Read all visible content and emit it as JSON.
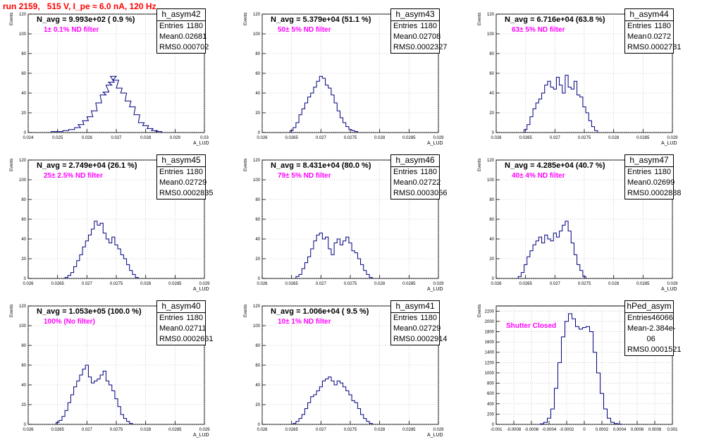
{
  "run_title": "run 2159,   515 V, I_pe ≈ 6.0 nA, 120 Hz",
  "colors": {
    "title": "#ff0000",
    "filter_text": "#ff00ff",
    "hist_line": "#000080",
    "grid": "#aaaaaa"
  },
  "chart_data": [
    {
      "type": "bar",
      "name": "h_asym42",
      "navg": "N_avg = 9.993e+02 ( 0.9 %)",
      "filter": "1± 0.1% ND filter",
      "ylabel": "Events",
      "xlabel": "A_LUD",
      "stats": {
        "entries": "1180",
        "mean": "0.02681",
        "rms": "0.000702"
      },
      "xlim": [
        0.024,
        0.03
      ],
      "ylim": [
        0,
        120
      ],
      "xticks": [
        "0.024",
        "0.025",
        "0.026",
        "0.027",
        "0.028",
        "0.029",
        "0.03"
      ],
      "yticks": [
        "0",
        "20",
        "40",
        "60",
        "80",
        "100",
        "120"
      ],
      "x": [
        0.02488,
        0.02508,
        0.02528,
        0.02548,
        0.02568,
        0.0258,
        0.02595,
        0.0261,
        0.02625,
        0.0264,
        0.02655,
        0.02665,
        0.02675,
        0.02683,
        0.0269,
        0.02698,
        0.0271,
        0.02725,
        0.0274,
        0.02755,
        0.0277,
        0.02785,
        0.028,
        0.02815,
        0.0283,
        0.02845
      ],
      "values": [
        1,
        1,
        2,
        3,
        5,
        8,
        12,
        16,
        22,
        30,
        38,
        41,
        48,
        51,
        57,
        53,
        45,
        40,
        32,
        26,
        18,
        10,
        7,
        4,
        2,
        1
      ]
    },
    {
      "type": "bar",
      "name": "h_asym43",
      "navg": "N_avg = 5.379e+04 (51.1 %)",
      "filter": "50± 5% ND filter",
      "ylabel": "Events",
      "xlabel": "A_LUD",
      "stats": {
        "entries": "1180",
        "mean": "0.02708",
        "rms": "0.0002327"
      },
      "xlim": [
        0.026,
        0.029
      ],
      "ylim": [
        0,
        120
      ],
      "xticks": [
        "0.026",
        "0.0265",
        "0.027",
        "0.0275",
        "0.028",
        "0.0285",
        "0.029"
      ],
      "yticks": [
        "0",
        "20",
        "40",
        "60",
        "80",
        "100",
        "120"
      ],
      "x": [
        0.0265,
        0.02655,
        0.0266,
        0.02665,
        0.0267,
        0.02675,
        0.0268,
        0.02685,
        0.0269,
        0.02695,
        0.027,
        0.02705,
        0.0271,
        0.02715,
        0.0272,
        0.02725,
        0.0273,
        0.02735,
        0.0274,
        0.02745,
        0.0275,
        0.02755,
        0.0276
      ],
      "values": [
        2,
        5,
        10,
        18,
        24,
        30,
        36,
        40,
        46,
        52,
        57,
        55,
        48,
        45,
        38,
        30,
        22,
        15,
        10,
        6,
        3,
        2,
        1
      ]
    },
    {
      "type": "bar",
      "name": "h_asym44",
      "navg": "N_avg = 6.716e+04 (63.8 %)",
      "filter": "63± 5% ND filter",
      "ylabel": "Events",
      "xlabel": "A_LUD",
      "stats": {
        "entries": "1180",
        "mean": "0.0272",
        "rms": "0.0002781"
      },
      "xlim": [
        0.026,
        0.029
      ],
      "ylim": [
        0,
        120
      ],
      "xticks": [
        "0.026",
        "0.0265",
        "0.027",
        "0.0275",
        "0.028",
        "0.0285",
        "0.029"
      ],
      "yticks": [
        "0",
        "20",
        "40",
        "60",
        "80",
        "100",
        "120"
      ],
      "x": [
        0.0265,
        0.02655,
        0.0266,
        0.02665,
        0.0267,
        0.02675,
        0.0268,
        0.02685,
        0.0269,
        0.02695,
        0.027,
        0.02705,
        0.0271,
        0.02715,
        0.0272,
        0.02725,
        0.0273,
        0.02735,
        0.0274,
        0.02745,
        0.0275,
        0.02755,
        0.0276,
        0.02765,
        0.0277
      ],
      "values": [
        3,
        8,
        16,
        24,
        30,
        34,
        40,
        48,
        52,
        46,
        44,
        56,
        48,
        40,
        58,
        46,
        44,
        52,
        38,
        36,
        26,
        20,
        12,
        6,
        2
      ]
    },
    {
      "type": "bar",
      "name": "h_asym45",
      "navg": "N_avg = 2.749e+04 (26.1 %)",
      "filter": "25± 2.5% ND filter",
      "ylabel": "Events",
      "xlabel": "A_LUD",
      "stats": {
        "entries": "1180",
        "mean": "0.02729",
        "rms": "0.0002835"
      },
      "xlim": [
        0.026,
        0.029
      ],
      "ylim": [
        0,
        120
      ],
      "xticks": [
        "0.026",
        "0.0265",
        "0.027",
        "0.0275",
        "0.028",
        "0.0285",
        "0.029"
      ],
      "yticks": [
        "0",
        "20",
        "40",
        "60",
        "80",
        "100",
        "120"
      ],
      "x": [
        0.02665,
        0.0267,
        0.02675,
        0.0268,
        0.02685,
        0.0269,
        0.02695,
        0.027,
        0.02705,
        0.0271,
        0.02715,
        0.0272,
        0.02725,
        0.0273,
        0.02735,
        0.0274,
        0.02745,
        0.0275,
        0.02755,
        0.0276,
        0.02765,
        0.0277,
        0.02775,
        0.0278,
        0.02785
      ],
      "values": [
        1,
        3,
        6,
        12,
        18,
        24,
        32,
        38,
        44,
        50,
        58,
        54,
        56,
        46,
        40,
        36,
        42,
        34,
        30,
        24,
        20,
        14,
        8,
        4,
        1
      ]
    },
    {
      "type": "bar",
      "name": "h_asym46",
      "navg": "N_avg = 8.431e+04 (80.0 %)",
      "filter": "79± 5% ND filter",
      "ylabel": "Events",
      "xlabel": "A_LUD",
      "stats": {
        "entries": "1180",
        "mean": "0.02722",
        "rms": "0.0003056"
      },
      "xlim": [
        0.026,
        0.029
      ],
      "ylim": [
        0,
        120
      ],
      "xticks": [
        "0.026",
        "0.0265",
        "0.027",
        "0.0275",
        "0.028",
        "0.0285",
        "0.029"
      ],
      "yticks": [
        "0",
        "20",
        "40",
        "60",
        "80",
        "100",
        "120"
      ],
      "x": [
        0.0266,
        0.02665,
        0.0267,
        0.02675,
        0.0268,
        0.02685,
        0.0269,
        0.02695,
        0.027,
        0.02705,
        0.0271,
        0.02715,
        0.0272,
        0.02725,
        0.0273,
        0.02735,
        0.0274,
        0.02745,
        0.0275,
        0.02755,
        0.0276,
        0.02765,
        0.0277,
        0.02775,
        0.0278,
        0.02785
      ],
      "values": [
        2,
        4,
        10,
        16,
        22,
        30,
        38,
        44,
        46,
        40,
        42,
        30,
        24,
        36,
        40,
        34,
        38,
        42,
        36,
        28,
        26,
        20,
        14,
        8,
        4,
        1
      ]
    },
    {
      "type": "bar",
      "name": "h_asym47",
      "navg": "N_avg = 4.285e+04 (40.7 %)",
      "filter": "40± 4% ND filter",
      "ylabel": "Events",
      "xlabel": "A_LUD",
      "stats": {
        "entries": "1180",
        "mean": "0.02699",
        "rms": "0.0002888"
      },
      "xlim": [
        0.026,
        0.029
      ],
      "ylim": [
        0,
        120
      ],
      "xticks": [
        "0.026",
        "0.0265",
        "0.027",
        "0.0275",
        "0.028",
        "0.0285",
        "0.029"
      ],
      "yticks": [
        "0",
        "20",
        "40",
        "60",
        "80",
        "100",
        "120"
      ],
      "x": [
        0.0264,
        0.02645,
        0.0265,
        0.02655,
        0.0266,
        0.02665,
        0.0267,
        0.02675,
        0.0268,
        0.02685,
        0.0269,
        0.02695,
        0.027,
        0.02705,
        0.0271,
        0.02715,
        0.0272,
        0.02725,
        0.0273,
        0.02735,
        0.0274,
        0.02745,
        0.0275
      ],
      "values": [
        2,
        6,
        14,
        22,
        28,
        34,
        38,
        42,
        36,
        44,
        40,
        38,
        46,
        42,
        48,
        54,
        58,
        48,
        36,
        24,
        14,
        8,
        2
      ]
    },
    {
      "type": "bar",
      "name": "h_asym40",
      "navg": "N_avg = 1.053e+05 (100.0 %)",
      "filter": "100% (No filter)",
      "ylabel": "Events",
      "xlabel": "A_LUD",
      "stats": {
        "entries": "1180",
        "mean": "0.02711",
        "rms": "0.0002661"
      },
      "xlim": [
        0.026,
        0.029
      ],
      "ylim": [
        0,
        120
      ],
      "xticks": [
        "0.026",
        "0.0265",
        "0.027",
        "0.0275",
        "0.028",
        "0.0285",
        "0.029"
      ],
      "yticks": [
        "0",
        "20",
        "40",
        "60",
        "80",
        "100",
        "120"
      ],
      "x": [
        0.0265,
        0.02655,
        0.0266,
        0.02665,
        0.0267,
        0.02675,
        0.0268,
        0.02685,
        0.0269,
        0.02695,
        0.027,
        0.02705,
        0.0271,
        0.02715,
        0.0272,
        0.02725,
        0.0273,
        0.02735,
        0.0274,
        0.02745,
        0.0275,
        0.02755,
        0.0276,
        0.02765,
        0.0277,
        0.02775
      ],
      "values": [
        2,
        4,
        8,
        14,
        22,
        30,
        38,
        44,
        50,
        56,
        60,
        48,
        42,
        44,
        46,
        50,
        54,
        44,
        40,
        34,
        26,
        18,
        10,
        6,
        3,
        1
      ]
    },
    {
      "type": "bar",
      "name": "h_asym41",
      "navg": "N_avg = 1.006e+04 ( 9.5 %)",
      "filter": "10± 1% ND filter",
      "ylabel": "Events",
      "xlabel": "A_LUD",
      "stats": {
        "entries": "1180",
        "mean": "0.02729",
        "rms": "0.0002914"
      },
      "xlim": [
        0.026,
        0.029
      ],
      "ylim": [
        0,
        120
      ],
      "xticks": [
        "0.026",
        "0.0265",
        "0.027",
        "0.0275",
        "0.028",
        "0.0285",
        "0.029"
      ],
      "yticks": [
        "0",
        "20",
        "40",
        "60",
        "80",
        "100",
        "120"
      ],
      "x": [
        0.02655,
        0.0266,
        0.02665,
        0.0267,
        0.02675,
        0.0268,
        0.02685,
        0.0269,
        0.02695,
        0.027,
        0.02705,
        0.0271,
        0.02715,
        0.0272,
        0.02725,
        0.0273,
        0.02735,
        0.0274,
        0.02745,
        0.0275,
        0.02755,
        0.0276,
        0.02765,
        0.0277,
        0.02775,
        0.0278,
        0.02785
      ],
      "values": [
        1,
        3,
        6,
        10,
        16,
        22,
        28,
        30,
        34,
        38,
        44,
        46,
        48,
        44,
        40,
        44,
        42,
        38,
        34,
        30,
        24,
        22,
        16,
        10,
        6,
        3,
        1
      ]
    },
    {
      "type": "bar",
      "name": "hPed_asym",
      "navg": "",
      "filter": "Shutter Closed",
      "ylabel": "Events",
      "xlabel": "",
      "stats": {
        "entries": "46066",
        "mean": "-2.384e-06",
        "rms": "0.0001521"
      },
      "xlim": [
        -0.001,
        0.001
      ],
      "ylim": [
        0,
        2300
      ],
      "xticks": [
        "-0.001",
        "-0.0008",
        "-0.0006",
        "-0.0004",
        "-0.0002",
        "0",
        "0.0002",
        "0.0004",
        "0.0006",
        "0.0008",
        "0.001"
      ],
      "yticks": [
        "0",
        "200",
        "400",
        "600",
        "800",
        "1000",
        "1200",
        "1400",
        "1600",
        "1800",
        "2000",
        "2200"
      ],
      "x": [
        -0.00048,
        -0.00044,
        -0.0004,
        -0.00036,
        -0.00032,
        -0.00028,
        -0.00024,
        -0.0002,
        -0.00016,
        -0.00012,
        -8e-05,
        -4e-05,
        0.0,
        4e-05,
        8e-05,
        0.00012,
        0.00016,
        0.0002,
        0.00024,
        0.00028,
        0.00032,
        0.00036,
        0.0004
      ],
      "values": [
        10,
        40,
        120,
        300,
        700,
        1200,
        1700,
        2000,
        2150,
        2050,
        1900,
        1850,
        1880,
        1900,
        1800,
        1400,
        1000,
        600,
        300,
        120,
        40,
        15,
        5
      ]
    }
  ]
}
